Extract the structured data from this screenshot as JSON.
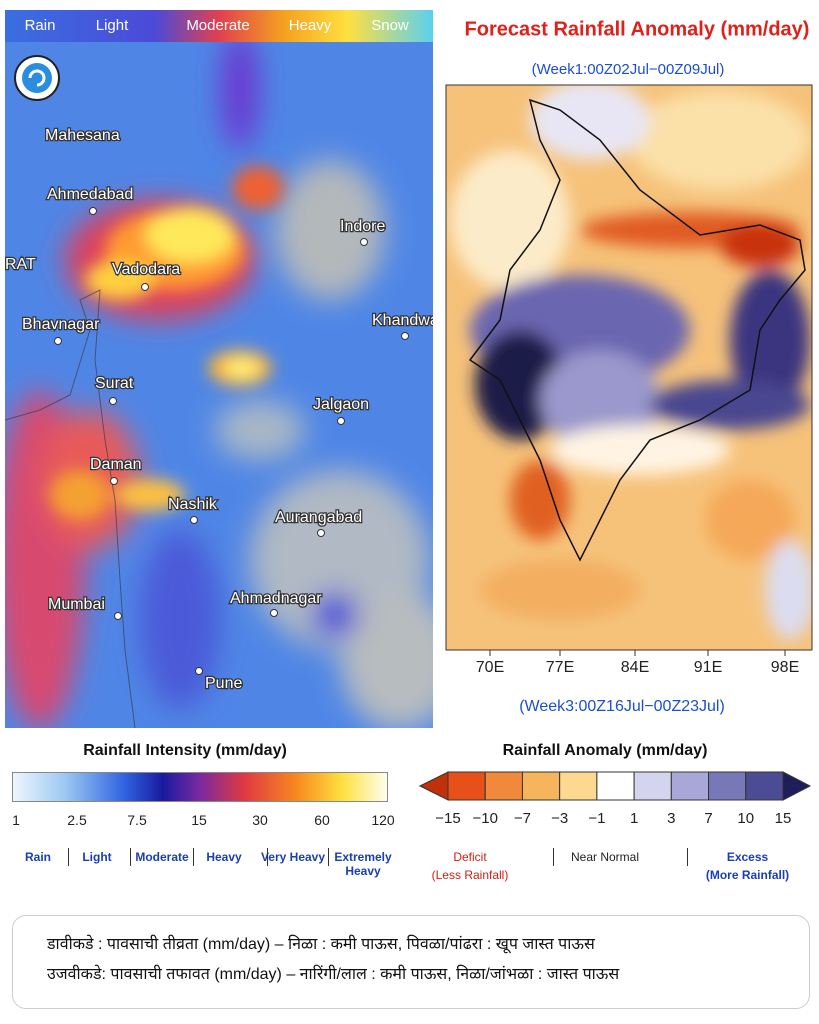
{
  "left_map": {
    "legend": [
      "Rain",
      "Light",
      "Moderate",
      "Heavy",
      "Snow"
    ],
    "cities": [
      "Mahesana",
      "Ahmedabad",
      "RAT",
      "Vadodara",
      "Indore",
      "Bhavnagar",
      "Khandwa",
      "Surat",
      "Jalgaon",
      "Daman",
      "Nashik",
      "Aurangabad",
      "Ahmadnagar",
      "Mumbai",
      "Pune"
    ]
  },
  "right_map": {
    "title": "Forecast Rainfall Anomaly (mm/day)",
    "subtitle": "(Week1:00Z02Jul−00Z09Jul)",
    "footer": "(Week3:00Z16Jul−00Z23Jul)",
    "longitudes": [
      "70E",
      "77E",
      "84E",
      "91E",
      "98E"
    ]
  },
  "intensity_legend": {
    "title": "Rainfall Intensity (mm/day)",
    "ticks": [
      "1",
      "2.5",
      "7.5",
      "15",
      "30",
      "60",
      "120"
    ],
    "categories": [
      "Rain",
      "Light",
      "Moderate",
      "Heavy",
      "Very Heavy",
      "Extremely Heavy"
    ]
  },
  "anomaly_legend": {
    "title": "Rainfall Anomaly (mm/day)",
    "ticks": [
      "−15",
      "−10",
      "−7",
      "−3",
      "−1",
      "1",
      "3",
      "7",
      "10",
      "15"
    ],
    "deficit": "Deficit",
    "deficit_note": "(Less Rainfall)",
    "normal": "Near Normal",
    "excess": "Excess",
    "excess_note": "(More Rainfall)"
  },
  "note": {
    "lines": [
      "डावीकडे : पावसाची तीव्रता (mm/day) – निळा : कमी पाऊस, पिवळा/पांढरा : खूप जास्त पाऊस",
      "उजवीकडे: पावसाची तफावत (mm/day) – नारिंगी/लाल : कमी पाऊस, निळा/जांभळा : जास्त पाऊस"
    ]
  }
}
